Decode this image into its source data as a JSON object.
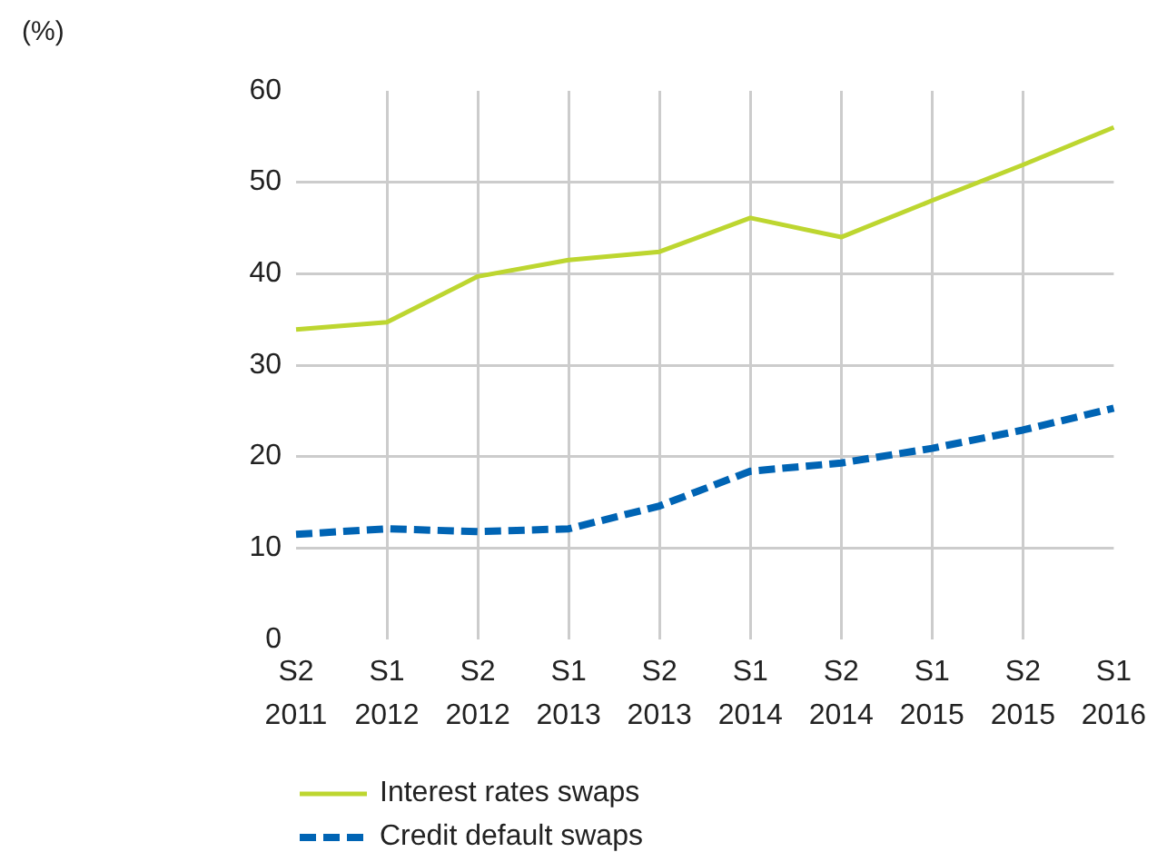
{
  "chart_data": {
    "type": "line",
    "annotations": [
      "(%)"
    ],
    "categories": [
      "S2 2011",
      "S1 2012",
      "S2 2012",
      "S1 2013",
      "S2 2013",
      "S1 2014",
      "S2 2014",
      "S1 2015",
      "S2 2015",
      "S1 2016"
    ],
    "series": [
      {
        "name": "Interest rates swaps",
        "color": "#bdd630",
        "line_style": "solid",
        "values": [
          33.9,
          34.7,
          39.7,
          41.5,
          42.4,
          46.1,
          44.0,
          48.0,
          51.9,
          56.0
        ]
      },
      {
        "name": "Credit default swaps",
        "color": "#0064b4",
        "line_style": "dashed",
        "values": [
          11.5,
          12.1,
          11.8,
          12.1,
          14.6,
          18.4,
          19.3,
          20.9,
          22.9,
          25.3
        ]
      }
    ],
    "ylim": [
      0,
      60
    ],
    "yticks": [
      0,
      10,
      20,
      30,
      40,
      50,
      60
    ],
    "grid": true,
    "legend": "bottom",
    "marker": "none"
  }
}
